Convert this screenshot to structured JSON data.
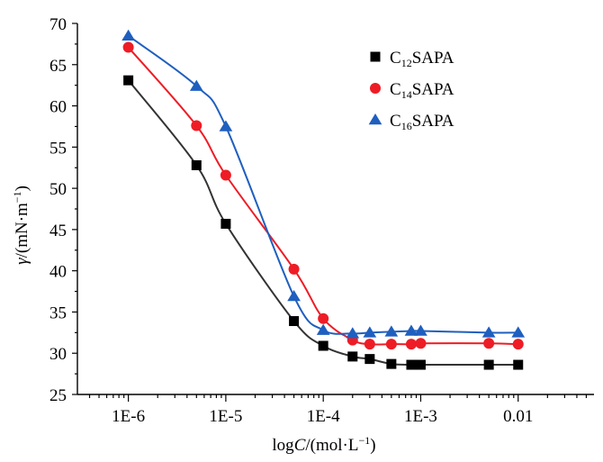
{
  "chart_data": {
    "type": "scatter",
    "x_scale": "log",
    "xlabel": {
      "prefix": "log",
      "var": "C",
      "mid": "/(mol·L",
      "sup": "−1",
      "suffix": ")"
    },
    "ylabel": {
      "var": "γ",
      "mid": "/(mN·m",
      "sup": "−1",
      "suffix": ")"
    },
    "xlim": [
      3e-07,
      0.06
    ],
    "ylim": [
      25,
      70
    ],
    "x_ticks": [
      {
        "value": 1e-06,
        "label": "1E-6"
      },
      {
        "value": 1e-05,
        "label": "1E-5"
      },
      {
        "value": 0.0001,
        "label": "1E-4"
      },
      {
        "value": 0.001,
        "label": "1E-3"
      },
      {
        "value": 0.01,
        "label": "0.01"
      }
    ],
    "y_ticks": [
      25,
      30,
      35,
      40,
      45,
      50,
      55,
      60,
      65,
      70
    ],
    "legend_position": "top-right",
    "grid": false,
    "x": [
      1e-06,
      5e-06,
      1e-05,
      5e-05,
      0.0001,
      0.0002,
      0.0003,
      0.0005,
      0.0008,
      0.001,
      0.005,
      0.01
    ],
    "series": [
      {
        "label_main": "C",
        "label_sub": "12",
        "label_tail": "SAPA",
        "marker": "square",
        "color": "#000000",
        "line_color": "#333333",
        "x": [
          1e-06,
          5e-06,
          1e-05,
          5e-05,
          0.0001,
          0.0002,
          0.0003,
          0.0005,
          0.0008,
          0.001,
          0.005,
          0.01
        ],
        "values": [
          63.1,
          52.8,
          45.7,
          33.9,
          30.9,
          29.6,
          29.3,
          28.7,
          28.6,
          28.6,
          28.6,
          28.6
        ]
      },
      {
        "label_main": "C",
        "label_sub": "14",
        "label_tail": "SAPA",
        "marker": "circle",
        "color": "#ee1c25",
        "line_color": "#ee1c25",
        "x": [
          1e-06,
          5e-06,
          1e-05,
          5e-05,
          0.0001,
          0.0002,
          0.0003,
          0.0005,
          0.0008,
          0.001,
          0.005,
          0.01
        ],
        "values": [
          67.1,
          57.6,
          51.6,
          40.2,
          34.2,
          31.6,
          31.1,
          31.1,
          31.1,
          31.2,
          31.2,
          31.1
        ]
      },
      {
        "label_main": "C",
        "label_sub": "16",
        "label_tail": "SAPA",
        "marker": "triangle",
        "color": "#1f5fbf",
        "line_color": "#1f5fbf",
        "x": [
          1e-06,
          5e-06,
          1e-05,
          5e-05,
          0.0001,
          0.0002,
          0.0003,
          0.0005,
          0.0008,
          0.001,
          0.005,
          0.01
        ],
        "values": [
          68.5,
          62.4,
          57.5,
          36.9,
          32.8,
          32.4,
          32.5,
          32.6,
          32.7,
          32.7,
          32.5,
          32.5
        ]
      }
    ]
  }
}
